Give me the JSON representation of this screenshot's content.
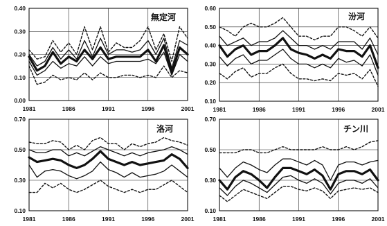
{
  "chart_data": [
    {
      "type": "line",
      "title": "無定河",
      "x": [
        1981,
        1982,
        1983,
        1984,
        1985,
        1986,
        1987,
        1988,
        1989,
        1990,
        1991,
        1992,
        1993,
        1994,
        1995,
        1996,
        1997,
        1998,
        1999,
        2000,
        2001
      ],
      "xticks": [
        "1981",
        "1986",
        "1991",
        "1996",
        "2001"
      ],
      "ylim": [
        0.0,
        0.4
      ],
      "yticks": [
        "0.00",
        "0.10",
        "0.20",
        "0.30",
        "0.40"
      ],
      "series": [
        {
          "style": "dashed-upper",
          "values": [
            0.22,
            0.18,
            0.19,
            0.26,
            0.21,
            0.25,
            0.2,
            0.32,
            0.22,
            0.32,
            0.21,
            0.25,
            0.23,
            0.23,
            0.26,
            0.32,
            0.22,
            0.29,
            0.17,
            0.32,
            0.27
          ]
        },
        {
          "style": "thin-upper",
          "values": [
            0.2,
            0.15,
            0.17,
            0.23,
            0.18,
            0.22,
            0.18,
            0.26,
            0.19,
            0.27,
            0.2,
            0.22,
            0.22,
            0.21,
            0.22,
            0.26,
            0.2,
            0.27,
            0.14,
            0.26,
            0.24
          ]
        },
        {
          "style": "thick-median",
          "values": [
            0.19,
            0.13,
            0.15,
            0.21,
            0.16,
            0.19,
            0.17,
            0.22,
            0.18,
            0.23,
            0.18,
            0.19,
            0.19,
            0.19,
            0.19,
            0.22,
            0.17,
            0.24,
            0.12,
            0.23,
            0.2
          ]
        },
        {
          "style": "thin-lower",
          "values": [
            0.17,
            0.11,
            0.13,
            0.17,
            0.14,
            0.16,
            0.15,
            0.19,
            0.15,
            0.19,
            0.16,
            0.17,
            0.17,
            0.17,
            0.17,
            0.18,
            0.16,
            0.21,
            0.11,
            0.2,
            0.17
          ]
        },
        {
          "style": "dashed-lower",
          "values": [
            0.15,
            0.07,
            0.08,
            0.11,
            0.09,
            0.1,
            0.09,
            0.12,
            0.09,
            0.12,
            0.1,
            0.1,
            0.11,
            0.11,
            0.1,
            0.11,
            0.1,
            0.15,
            0.1,
            0.13,
            0.12
          ]
        }
      ]
    },
    {
      "type": "line",
      "title": "汾河",
      "x": [
        1981,
        1982,
        1983,
        1984,
        1985,
        1986,
        1987,
        1988,
        1989,
        1990,
        1991,
        1992,
        1993,
        1994,
        1995,
        1996,
        1997,
        1998,
        1999,
        2000,
        2001
      ],
      "xticks": [
        "1981",
        "1986",
        "1991",
        "1996",
        "2001"
      ],
      "ylim": [
        0.1,
        0.6
      ],
      "yticks": [
        "0.10",
        "0.20",
        "0.30",
        "0.40",
        "0.50",
        "0.60"
      ],
      "series": [
        {
          "style": "dashed-upper",
          "values": [
            0.5,
            0.48,
            0.45,
            0.5,
            0.52,
            0.5,
            0.5,
            0.52,
            0.55,
            0.5,
            0.45,
            0.45,
            0.43,
            0.45,
            0.45,
            0.5,
            0.5,
            0.48,
            0.45,
            0.5,
            0.44
          ]
        },
        {
          "style": "thin-upper",
          "values": [
            0.45,
            0.4,
            0.42,
            0.44,
            0.4,
            0.42,
            0.42,
            0.44,
            0.48,
            0.44,
            0.4,
            0.4,
            0.38,
            0.4,
            0.38,
            0.42,
            0.42,
            0.42,
            0.38,
            0.44,
            0.35
          ]
        },
        {
          "style": "thick-median",
          "values": [
            0.4,
            0.34,
            0.38,
            0.4,
            0.35,
            0.37,
            0.37,
            0.4,
            0.44,
            0.38,
            0.36,
            0.35,
            0.33,
            0.35,
            0.33,
            0.38,
            0.37,
            0.37,
            0.34,
            0.4,
            0.28
          ]
        },
        {
          "style": "thin-lower",
          "values": [
            0.34,
            0.29,
            0.33,
            0.35,
            0.3,
            0.32,
            0.32,
            0.35,
            0.38,
            0.33,
            0.3,
            0.3,
            0.28,
            0.3,
            0.28,
            0.33,
            0.31,
            0.32,
            0.29,
            0.35,
            0.24
          ]
        },
        {
          "style": "dashed-lower",
          "values": [
            0.25,
            0.22,
            0.26,
            0.28,
            0.23,
            0.25,
            0.25,
            0.28,
            0.3,
            0.25,
            0.22,
            0.22,
            0.21,
            0.22,
            0.21,
            0.25,
            0.24,
            0.25,
            0.22,
            0.27,
            0.18
          ]
        }
      ]
    },
    {
      "type": "line",
      "title": "洛河",
      "x": [
        1981,
        1982,
        1983,
        1984,
        1985,
        1986,
        1987,
        1988,
        1989,
        1990,
        1991,
        1992,
        1993,
        1994,
        1995,
        1996,
        1997,
        1998,
        1999,
        2000,
        2001
      ],
      "xticks": [
        "1981",
        "1986",
        "1991",
        "1996",
        "2001"
      ],
      "ylim": [
        0.1,
        0.7
      ],
      "yticks": [
        "0.10",
        "0.30",
        "0.50",
        "0.70"
      ],
      "series": [
        {
          "style": "dashed-upper",
          "values": [
            0.55,
            0.54,
            0.54,
            0.56,
            0.55,
            0.5,
            0.53,
            0.5,
            0.56,
            0.58,
            0.54,
            0.54,
            0.5,
            0.54,
            0.52,
            0.54,
            0.55,
            0.58,
            0.56,
            0.55,
            0.53
          ]
        },
        {
          "style": "thin-upper",
          "values": [
            0.5,
            0.48,
            0.48,
            0.5,
            0.5,
            0.46,
            0.48,
            0.46,
            0.49,
            0.52,
            0.5,
            0.48,
            0.46,
            0.48,
            0.46,
            0.48,
            0.49,
            0.5,
            0.52,
            0.5,
            0.47
          ]
        },
        {
          "style": "thick-median",
          "values": [
            0.45,
            0.42,
            0.43,
            0.44,
            0.43,
            0.4,
            0.38,
            0.4,
            0.44,
            0.49,
            0.44,
            0.42,
            0.4,
            0.42,
            0.4,
            0.41,
            0.42,
            0.43,
            0.47,
            0.44,
            0.38
          ]
        },
        {
          "style": "thin-lower",
          "values": [
            0.4,
            0.32,
            0.36,
            0.37,
            0.36,
            0.33,
            0.31,
            0.33,
            0.36,
            0.42,
            0.37,
            0.35,
            0.32,
            0.35,
            0.32,
            0.33,
            0.34,
            0.36,
            0.4,
            0.36,
            0.32
          ]
        },
        {
          "style": "dashed-lower",
          "values": [
            0.22,
            0.22,
            0.28,
            0.25,
            0.28,
            0.24,
            0.22,
            0.24,
            0.27,
            0.3,
            0.26,
            0.24,
            0.22,
            0.24,
            0.22,
            0.24,
            0.24,
            0.27,
            0.3,
            0.26,
            0.22
          ]
        }
      ]
    },
    {
      "type": "line",
      "title": "チン川",
      "x": [
        1981,
        1982,
        1983,
        1984,
        1985,
        1986,
        1987,
        1988,
        1989,
        1990,
        1991,
        1992,
        1993,
        1994,
        1995,
        1996,
        1997,
        1998,
        1999,
        2000,
        2001
      ],
      "xticks": [
        "1981",
        "1986",
        "1991",
        "1996",
        "2001"
      ],
      "ylim": [
        0.1,
        0.7
      ],
      "yticks": [
        "0.10",
        "0.30",
        "0.50",
        "0.70"
      ],
      "series": [
        {
          "style": "dashed-upper",
          "values": [
            0.48,
            0.48,
            0.48,
            0.5,
            0.5,
            0.48,
            0.48,
            0.5,
            0.52,
            0.5,
            0.5,
            0.5,
            0.5,
            0.52,
            0.5,
            0.5,
            0.52,
            0.5,
            0.52,
            0.55,
            0.56
          ]
        },
        {
          "style": "thin-upper",
          "values": [
            0.38,
            0.32,
            0.38,
            0.42,
            0.4,
            0.37,
            0.35,
            0.4,
            0.44,
            0.44,
            0.42,
            0.4,
            0.43,
            0.4,
            0.3,
            0.4,
            0.42,
            0.42,
            0.4,
            0.42,
            0.43
          ]
        },
        {
          "style": "thick-median",
          "values": [
            0.3,
            0.24,
            0.32,
            0.36,
            0.34,
            0.3,
            0.25,
            0.32,
            0.38,
            0.38,
            0.36,
            0.34,
            0.37,
            0.33,
            0.24,
            0.34,
            0.36,
            0.36,
            0.34,
            0.37,
            0.3
          ]
        },
        {
          "style": "thin-lower",
          "values": [
            0.25,
            0.2,
            0.26,
            0.3,
            0.28,
            0.25,
            0.22,
            0.27,
            0.32,
            0.33,
            0.3,
            0.28,
            0.31,
            0.28,
            0.21,
            0.28,
            0.3,
            0.3,
            0.28,
            0.31,
            0.25
          ]
        },
        {
          "style": "dashed-lower",
          "values": [
            0.2,
            0.16,
            0.2,
            0.24,
            0.22,
            0.2,
            0.18,
            0.22,
            0.26,
            0.26,
            0.24,
            0.23,
            0.25,
            0.23,
            0.18,
            0.23,
            0.24,
            0.25,
            0.24,
            0.25,
            0.22
          ]
        }
      ]
    }
  ]
}
